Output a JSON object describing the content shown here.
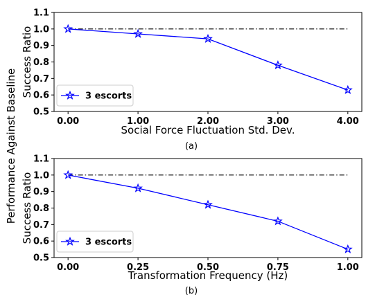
{
  "figure": {
    "shared_ylabel": "Performance Against Baseline"
  },
  "chart_data": [
    {
      "type": "line",
      "caption": "(a)",
      "xlabel": "Social Force Fluctuation Std. Dev.",
      "ylabel": "Success Ratio",
      "x": [
        0.0,
        1.0,
        2.0,
        3.0,
        4.0
      ],
      "x_tick_labels": [
        "0.00",
        "1.00",
        "2.00",
        "3.00",
        "4.00"
      ],
      "xlim": [
        -0.2,
        4.2
      ],
      "ylim": [
        0.5,
        1.1
      ],
      "y_ticks": [
        0.5,
        0.6,
        0.7,
        0.8,
        0.9,
        1.0,
        1.1
      ],
      "y_tick_labels": [
        "0.5",
        "0.6",
        "0.7",
        "0.8",
        "0.9",
        "1.0",
        "1.1"
      ],
      "grid": false,
      "legend_position": "lower-left",
      "baseline": 1.0,
      "series": [
        {
          "name": "3 escorts",
          "values": [
            1.0,
            0.97,
            0.94,
            0.78,
            0.63
          ],
          "color": "#0000ff",
          "marker": "star"
        }
      ]
    },
    {
      "type": "line",
      "caption": "(b)",
      "xlabel": "Transformation Frequency (Hz)",
      "ylabel": "Success Ratio",
      "x": [
        0.0,
        0.25,
        0.5,
        0.75,
        1.0
      ],
      "x_tick_labels": [
        "0.00",
        "0.25",
        "0.50",
        "0.75",
        "1.00"
      ],
      "xlim": [
        -0.05,
        1.05
      ],
      "ylim": [
        0.5,
        1.1
      ],
      "y_ticks": [
        0.5,
        0.6,
        0.7,
        0.8,
        0.9,
        1.0,
        1.1
      ],
      "y_tick_labels": [
        "0.5",
        "0.6",
        "0.7",
        "0.8",
        "0.9",
        "1.0",
        "1.1"
      ],
      "grid": false,
      "legend_position": "lower-left",
      "baseline": 1.0,
      "series": [
        {
          "name": "3 escorts",
          "values": [
            1.0,
            0.92,
            0.82,
            0.72,
            0.55
          ],
          "color": "#0000ff",
          "marker": "star"
        }
      ]
    }
  ]
}
